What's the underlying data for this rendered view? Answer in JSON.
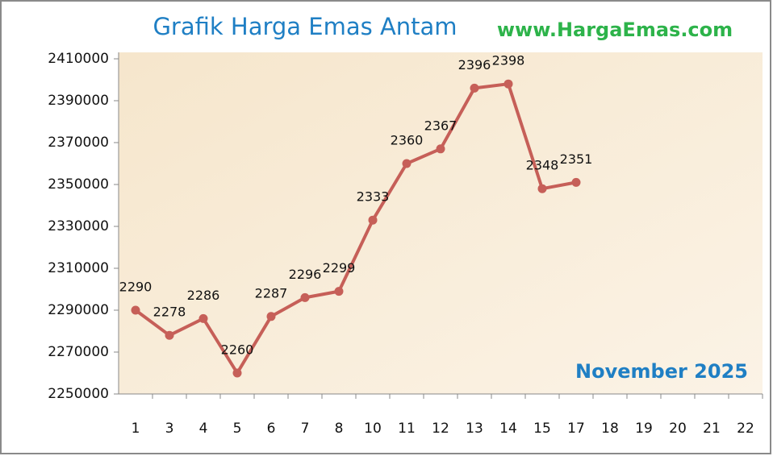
{
  "chart_data": {
    "type": "line",
    "title": "Grafik Harga Emas Antam",
    "subtitle": "www.HargaEmas.com",
    "annotation": "November 2025",
    "categories": [
      "1",
      "3",
      "4",
      "5",
      "6",
      "7",
      "8",
      "10",
      "11",
      "12",
      "13",
      "14",
      "15",
      "17",
      "18",
      "19",
      "20",
      "21",
      "22"
    ],
    "values": [
      2290000,
      2278000,
      2286000,
      2260000,
      2287000,
      2296000,
      2299000,
      2333000,
      2360000,
      2367000,
      2396000,
      2398000,
      2348000,
      2351000,
      null,
      null,
      null,
      null,
      null
    ],
    "value_labels": [
      "2290",
      "2278",
      "2286",
      "2260",
      "2287",
      "2296",
      "2299",
      "2333",
      "2360",
      "2367",
      "2396",
      "2398",
      "2348",
      "2351",
      null,
      null,
      null,
      null,
      null
    ],
    "color": "#c65f58",
    "ylim": [
      2250000,
      2410000
    ],
    "yticks": [
      2250000,
      2270000,
      2290000,
      2310000,
      2330000,
      2350000,
      2370000,
      2390000,
      2410000
    ],
    "grid": false
  }
}
